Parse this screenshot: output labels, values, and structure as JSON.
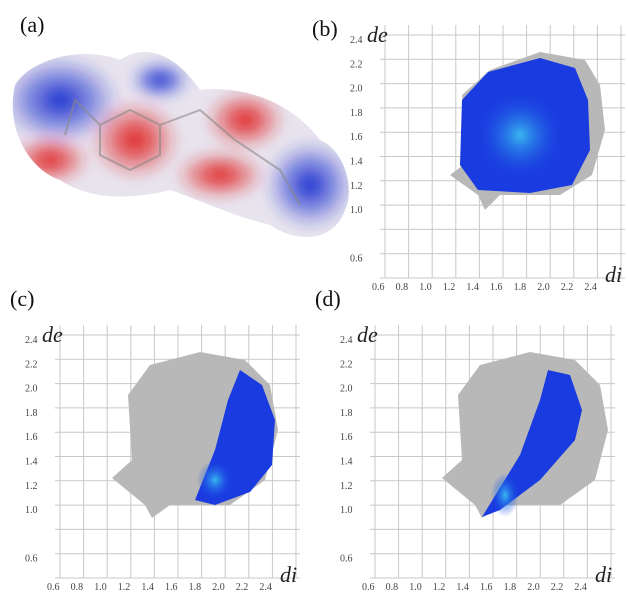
{
  "panels": [
    {
      "label": "(a)"
    },
    {
      "label": "(b)",
      "y_axis_label": "de",
      "x_axis_label": "di",
      "y_ticks": [
        "2.4",
        "2.2",
        "2.0",
        "1.8",
        "1.6",
        "1.4",
        "1.2",
        "1.0",
        "0.6"
      ],
      "x_ticks": [
        "0.6",
        "0.8",
        "1.0",
        "1.2",
        "1.4",
        "1.6",
        "1.8",
        "2.0",
        "2.2",
        "2.4"
      ]
    },
    {
      "label": "(c)",
      "y_axis_label": "de",
      "x_axis_label": "di",
      "y_ticks": [
        "2.4",
        "2.2",
        "2.0",
        "1.8",
        "1.6",
        "1.4",
        "1.2",
        "1.0",
        "0.6"
      ],
      "x_ticks": [
        "0.6",
        "0.8",
        "1.0",
        "1.2",
        "1.4",
        "1.6",
        "1.8",
        "2.0",
        "2.2",
        "2.4"
      ]
    },
    {
      "label": "(d)",
      "y_axis_label": "de",
      "x_axis_label": "di",
      "y_ticks": [
        "2.4",
        "2.2",
        "2.0",
        "1.8",
        "1.6",
        "1.4",
        "1.2",
        "1.0",
        "0.6"
      ],
      "x_ticks": [
        "0.6",
        "0.8",
        "1.0",
        "1.2",
        "1.4",
        "1.6",
        "1.8",
        "2.0",
        "2.2",
        "2.4"
      ]
    }
  ]
}
